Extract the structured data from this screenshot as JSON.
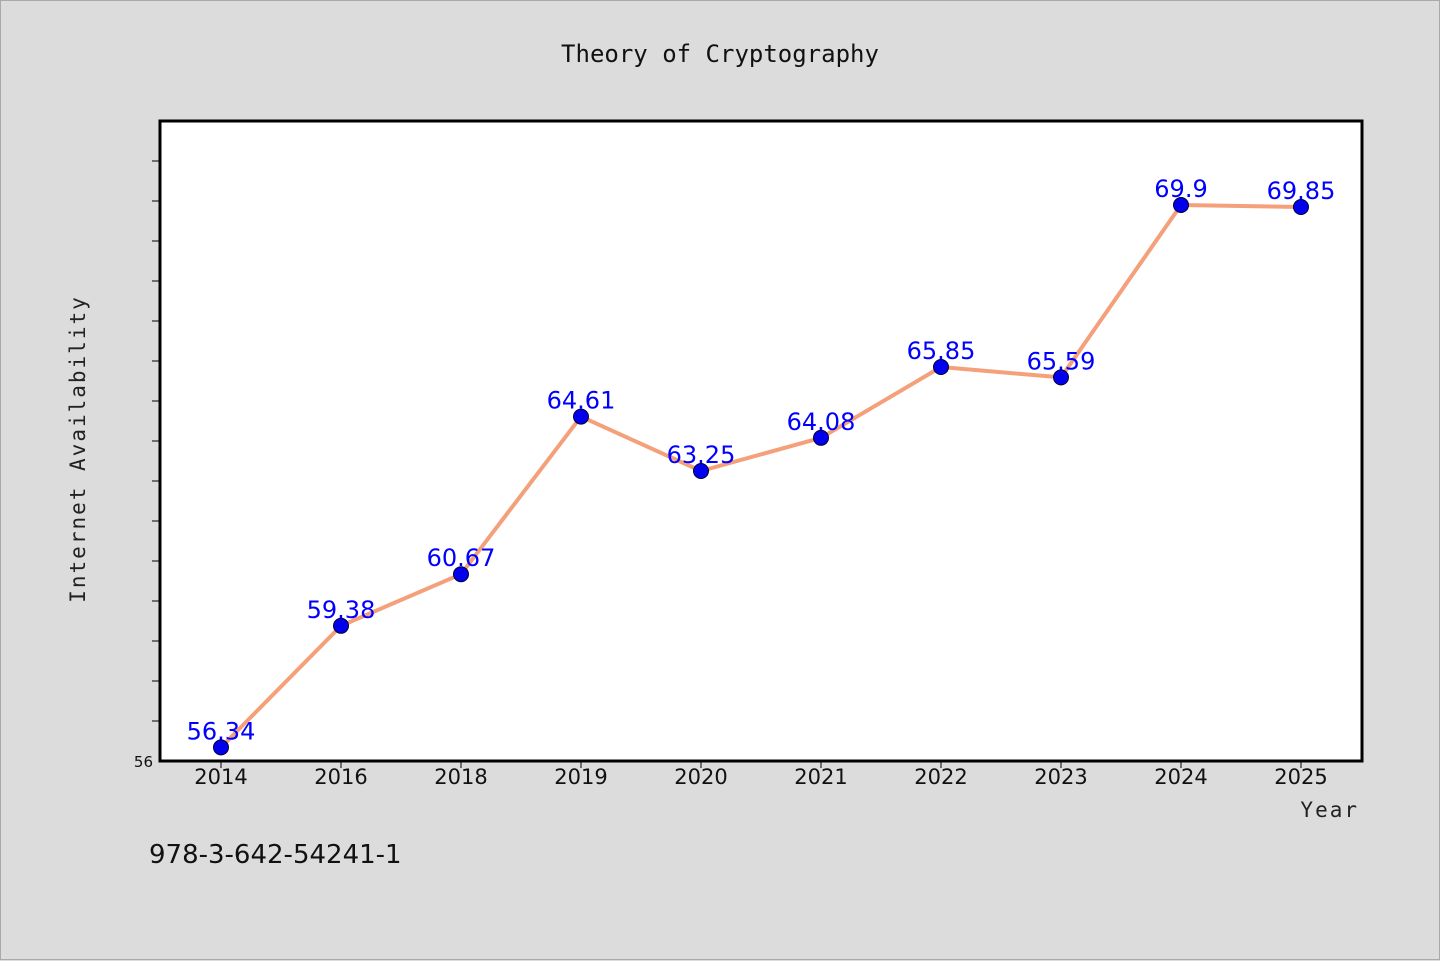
{
  "chart_data": {
    "type": "line",
    "title": "Theory of Cryptography",
    "xlabel": "Year",
    "ylabel": "Internet Availability",
    "categories": [
      "2014",
      "2016",
      "2018",
      "2019",
      "2020",
      "2021",
      "2022",
      "2023",
      "2024",
      "2025"
    ],
    "series": [
      {
        "values": [
          56.34,
          59.38,
          60.67,
          64.61,
          63.25,
          64.08,
          65.85,
          65.59,
          69.9,
          69.85
        ]
      }
    ],
    "data_labels": [
      "56.34",
      "59.38",
      "60.67",
      "64.61",
      "63.25",
      "64.08",
      "65.85",
      "65.59",
      "69.9",
      "69.85"
    ],
    "ylim": [
      56,
      72
    ],
    "y_tick_labels": [
      "56"
    ],
    "grid": false,
    "legend": "none",
    "colors": {
      "line": "#f4a07a",
      "marker": "#0000ee",
      "data_label": "#0000ff",
      "plot_background": "#ffffff",
      "figure_background": "#dcdcdc"
    }
  },
  "footer": {
    "isbn": "978-3-642-54241-1"
  }
}
